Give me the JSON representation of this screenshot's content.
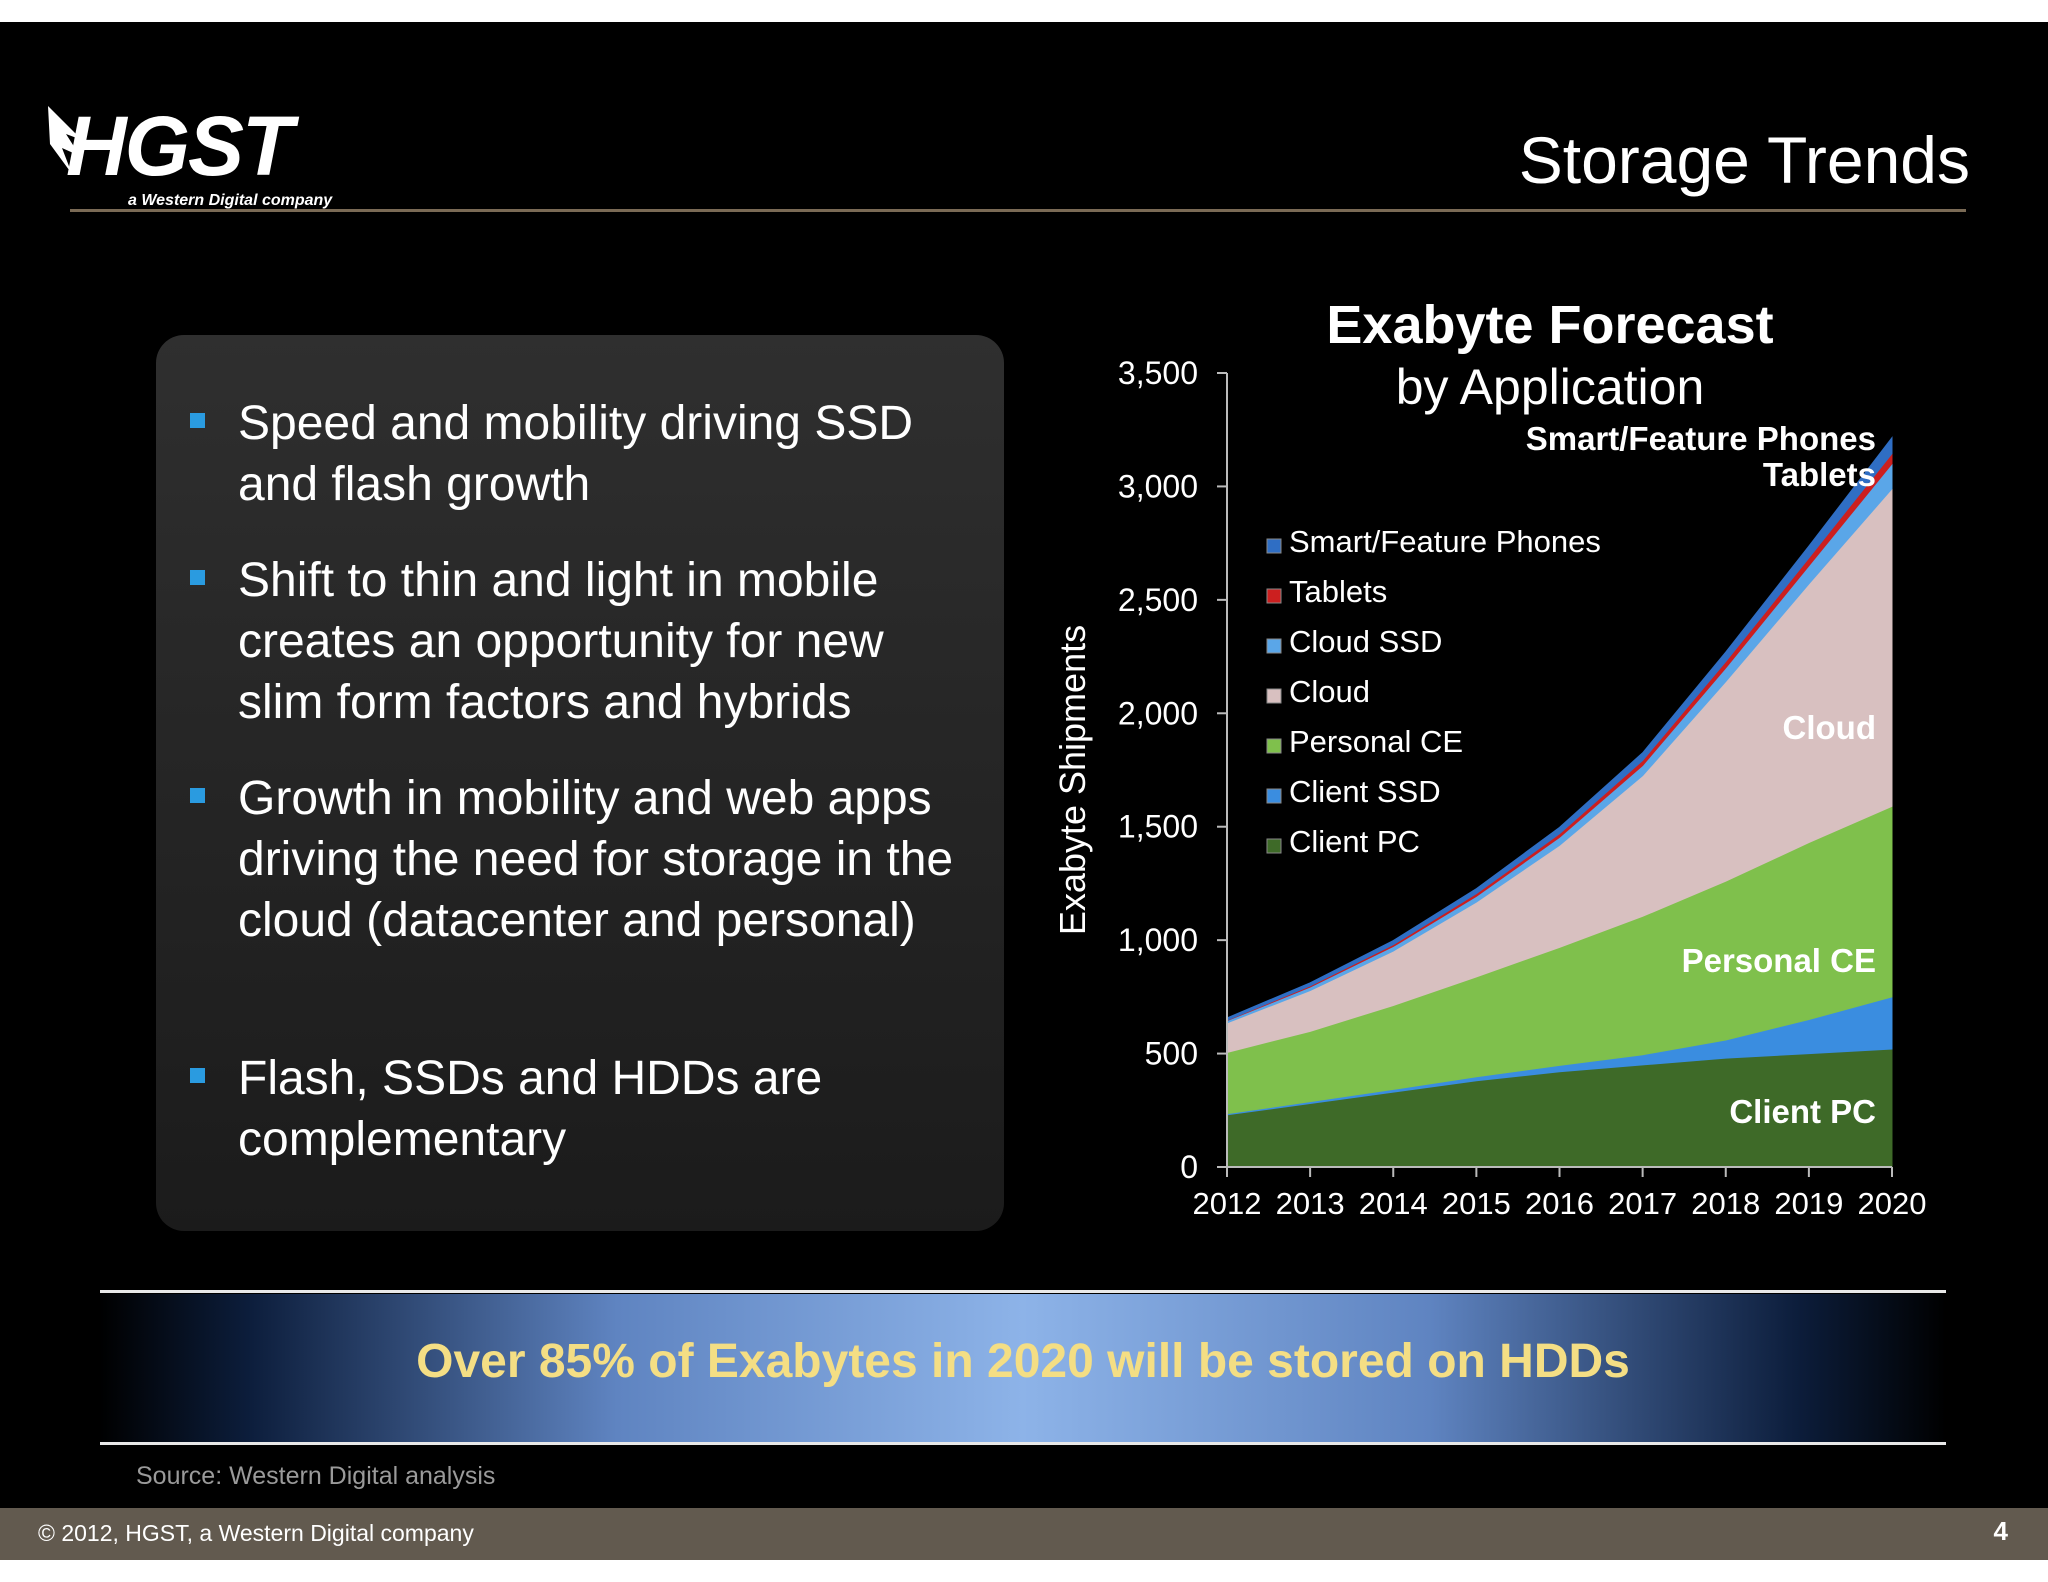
{
  "slide": {
    "logo": {
      "text": "HGST",
      "tagline": "a Western Digital company"
    },
    "title": "Storage Trends",
    "bullets": [
      "Speed and mobility driving SSD and flash growth",
      "Shift to thin and light in mobile creates an opportunity for new slim form factors and hybrids",
      "Growth in mobility and web apps driving the need for storage in the cloud (datacenter and personal)",
      "Flash, SSDs and HDDs are complementary"
    ],
    "banner": "Over 85% of Exabytes in 2020 will be stored on HDDs",
    "source": "Source: Western Digital analysis",
    "footer": "© 2012,  HGST, a Western Digital company",
    "page_number": "4"
  },
  "chart_data": {
    "type": "area",
    "stacked": true,
    "title": "Exabyte Forecast",
    "subtitle": "by Application",
    "xlabel": "",
    "ylabel": "Exabyte Shipments",
    "x": [
      "2012",
      "2013",
      "2014",
      "2015",
      "2016",
      "2017",
      "2018",
      "2019",
      "2020"
    ],
    "ylim": [
      0,
      3500
    ],
    "yticks": [
      "0",
      "500",
      "1,000",
      "1,500",
      "2,000",
      "2,500",
      "3,000",
      "3,500"
    ],
    "legend_position": "upper-left",
    "series": [
      {
        "name": "Client PC",
        "color": "#3e6a28",
        "values": [
          230,
          280,
          330,
          380,
          420,
          450,
          480,
          500,
          520
        ]
      },
      {
        "name": "Client SSD",
        "color": "#3a8de0",
        "values": [
          5,
          8,
          12,
          18,
          28,
          45,
          80,
          150,
          230
        ]
      },
      {
        "name": "Personal CE",
        "color": "#7fc04c",
        "values": [
          270,
          310,
          370,
          440,
          520,
          610,
          700,
          780,
          840
        ]
      },
      {
        "name": "Cloud",
        "color": "#d8c0c0",
        "values": [
          130,
          180,
          240,
          330,
          450,
          620,
          880,
          1140,
          1400
        ]
      },
      {
        "name": "Cloud SSD",
        "color": "#5aa6e8",
        "values": [
          10,
          15,
          20,
          25,
          35,
          45,
          60,
          80,
          110
        ]
      },
      {
        "name": "Tablets",
        "color": "#cc1f1f",
        "values": [
          2,
          5,
          8,
          12,
          16,
          22,
          28,
          35,
          45
        ]
      },
      {
        "name": "Smart/Feature Phones",
        "color": "#2f6ec4",
        "values": [
          10,
          14,
          18,
          22,
          28,
          34,
          42,
          52,
          70
        ]
      }
    ],
    "area_labels": [
      "Smart/Feature Phones",
      "Tablets",
      "Cloud",
      "Personal CE",
      "Client PC"
    ]
  }
}
